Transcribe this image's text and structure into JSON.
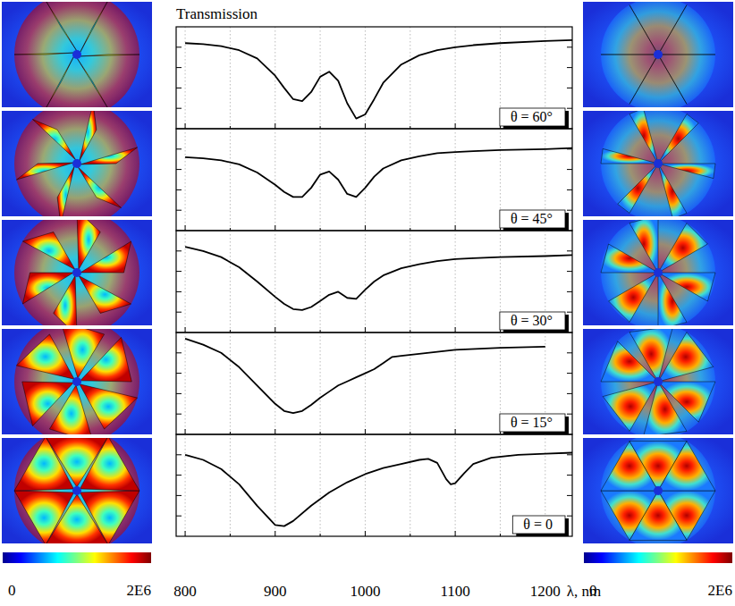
{
  "chart_data": [
    {
      "type": "line",
      "theta": 60,
      "label": "θ = 60°",
      "y_label": "Transmission",
      "color": "#000000",
      "xlim": [
        790,
        1230
      ],
      "xticks": [
        800,
        900,
        1000,
        1100,
        1200
      ],
      "minor_xticks": [
        850,
        950,
        1050,
        1150
      ],
      "ylim": [
        0,
        1
      ],
      "yticks": [
        0.2,
        0.4,
        0.6,
        0.8
      ],
      "grid": true,
      "tick_labels": false,
      "x": [
        800,
        820,
        840,
        860,
        880,
        900,
        910,
        920,
        930,
        940,
        950,
        960,
        970,
        980,
        990,
        1000,
        1010,
        1020,
        1040,
        1060,
        1080,
        1100,
        1120,
        1150,
        1200,
        1230
      ],
      "values": [
        0.84,
        0.83,
        0.81,
        0.77,
        0.69,
        0.52,
        0.4,
        0.29,
        0.27,
        0.36,
        0.51,
        0.56,
        0.47,
        0.25,
        0.1,
        0.14,
        0.29,
        0.45,
        0.63,
        0.72,
        0.77,
        0.8,
        0.82,
        0.84,
        0.86,
        0.87
      ]
    },
    {
      "type": "line",
      "theta": 45,
      "label": "θ = 45°",
      "color": "#000000",
      "xlim": [
        790,
        1230
      ],
      "xticks": [
        800,
        900,
        1000,
        1100,
        1200
      ],
      "minor_xticks": [
        850,
        950,
        1050,
        1150
      ],
      "ylim": [
        0,
        1
      ],
      "yticks": [
        0.2,
        0.4,
        0.6,
        0.8
      ],
      "grid": true,
      "tick_labels": false,
      "x": [
        800,
        820,
        840,
        860,
        880,
        900,
        910,
        920,
        930,
        940,
        950,
        960,
        970,
        980,
        990,
        1000,
        1010,
        1020,
        1040,
        1060,
        1080,
        1100,
        1120,
        1150,
        1200,
        1230
      ],
      "values": [
        0.72,
        0.71,
        0.69,
        0.65,
        0.57,
        0.45,
        0.38,
        0.33,
        0.33,
        0.42,
        0.55,
        0.58,
        0.5,
        0.36,
        0.33,
        0.42,
        0.53,
        0.61,
        0.69,
        0.73,
        0.76,
        0.77,
        0.78,
        0.79,
        0.8,
        0.81
      ]
    },
    {
      "type": "line",
      "theta": 30,
      "label": "θ = 30°",
      "color": "#000000",
      "xlim": [
        790,
        1230
      ],
      "xticks": [
        800,
        900,
        1000,
        1100,
        1200
      ],
      "minor_xticks": [
        850,
        950,
        1050,
        1150
      ],
      "ylim": [
        0,
        1
      ],
      "yticks": [
        0.2,
        0.4,
        0.6,
        0.8
      ],
      "grid": true,
      "tick_labels": false,
      "x": [
        800,
        820,
        840,
        860,
        880,
        900,
        910,
        920,
        930,
        940,
        950,
        960,
        970,
        980,
        990,
        1000,
        1010,
        1020,
        1040,
        1060,
        1080,
        1100,
        1120,
        1150,
        1200,
        1230
      ],
      "values": [
        0.84,
        0.8,
        0.74,
        0.64,
        0.5,
        0.35,
        0.28,
        0.23,
        0.22,
        0.25,
        0.31,
        0.37,
        0.4,
        0.34,
        0.33,
        0.42,
        0.5,
        0.56,
        0.63,
        0.67,
        0.7,
        0.72,
        0.73,
        0.74,
        0.75,
        0.76
      ]
    },
    {
      "type": "line",
      "theta": 15,
      "label": "θ = 15°",
      "color": "#000000",
      "xlim": [
        790,
        1230
      ],
      "xticks": [
        800,
        900,
        1000,
        1100,
        1200
      ],
      "minor_xticks": [
        850,
        950,
        1050,
        1150
      ],
      "ylim": [
        0,
        1
      ],
      "yticks": [
        0.2,
        0.4,
        0.6,
        0.8
      ],
      "grid": true,
      "tick_labels": false,
      "x": [
        800,
        820,
        840,
        860,
        880,
        900,
        910,
        920,
        930,
        940,
        950,
        960,
        970,
        980,
        990,
        1000,
        1010,
        1020,
        1025,
        1030,
        1040,
        1060,
        1080,
        1100,
        1150,
        1200
      ],
      "values": [
        0.94,
        0.88,
        0.8,
        0.66,
        0.48,
        0.3,
        0.23,
        0.21,
        0.23,
        0.29,
        0.36,
        0.42,
        0.48,
        0.52,
        0.56,
        0.6,
        0.64,
        0.7,
        0.73,
        0.76,
        0.77,
        0.79,
        0.81,
        0.83,
        0.85,
        0.86
      ]
    },
    {
      "type": "line",
      "theta": 0,
      "label": "θ = 0",
      "x_label": "λ, nm",
      "color": "#000000",
      "xlim": [
        790,
        1230
      ],
      "xticks": [
        800,
        900,
        1000,
        1100,
        1200
      ],
      "minor_xticks": [
        850,
        950,
        1050,
        1150
      ],
      "ylim": [
        0,
        1
      ],
      "yticks": [
        0.2,
        0.4,
        0.6,
        0.8
      ],
      "grid": true,
      "tick_labels": "x",
      "x": [
        800,
        820,
        840,
        860,
        880,
        900,
        910,
        920,
        940,
        960,
        980,
        1000,
        1020,
        1040,
        1060,
        1070,
        1080,
        1090,
        1095,
        1100,
        1110,
        1120,
        1140,
        1170,
        1200,
        1230
      ],
      "values": [
        0.8,
        0.75,
        0.66,
        0.51,
        0.3,
        0.11,
        0.1,
        0.15,
        0.3,
        0.43,
        0.53,
        0.61,
        0.67,
        0.71,
        0.75,
        0.76,
        0.72,
        0.56,
        0.51,
        0.52,
        0.62,
        0.71,
        0.77,
        0.8,
        0.81,
        0.82
      ]
    }
  ],
  "colorbars": [
    {
      "range": [
        0,
        2000000
      ],
      "ticks": [
        {
          "value": 0,
          "label": "0"
        },
        {
          "value": 2000000,
          "label": "2E6"
        }
      ]
    },
    {
      "range": [
        0,
        2000000
      ],
      "ticks": [
        {
          "value": 0,
          "label": "0"
        },
        {
          "value": 2000000,
          "label": "2E6"
        }
      ]
    }
  ]
}
